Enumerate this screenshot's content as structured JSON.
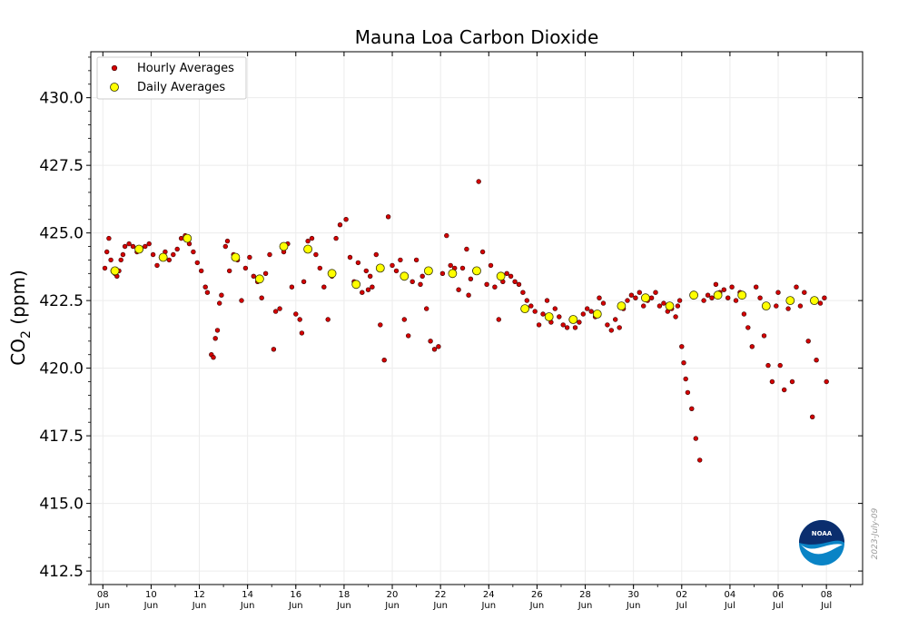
{
  "chart_data": {
    "type": "scatter",
    "title": "Mauna Loa Carbon Dioxide",
    "ylabel_main": "CO",
    "ylabel_sub": "2",
    "ylabel_units": " (ppm)",
    "ylim": [
      412.0,
      431.7
    ],
    "xlim": [
      "2023-06-07 12:00",
      "2023-07-09 12:00"
    ],
    "yticks": [
      "412.5",
      "415.0",
      "417.5",
      "420.0",
      "422.5",
      "425.0",
      "427.5",
      "430.0"
    ],
    "xticks": [
      {
        "day": "08",
        "month": "Jun"
      },
      {
        "day": "10",
        "month": "Jun"
      },
      {
        "day": "12",
        "month": "Jun"
      },
      {
        "day": "14",
        "month": "Jun"
      },
      {
        "day": "16",
        "month": "Jun"
      },
      {
        "day": "18",
        "month": "Jun"
      },
      {
        "day": "20",
        "month": "Jun"
      },
      {
        "day": "22",
        "month": "Jun"
      },
      {
        "day": "24",
        "month": "Jun"
      },
      {
        "day": "26",
        "month": "Jun"
      },
      {
        "day": "28",
        "month": "Jun"
      },
      {
        "day": "30",
        "month": "Jun"
      },
      {
        "day": "02",
        "month": "Jul"
      },
      {
        "day": "04",
        "month": "Jul"
      },
      {
        "day": "06",
        "month": "Jul"
      },
      {
        "day": "08",
        "month": "Jul"
      }
    ],
    "grid": true,
    "legend_position": "top-left",
    "colors": {
      "hourly": "#d40000",
      "daily": "#ffff00",
      "noaa_blue": "#0a84c6",
      "noaa_navy": "#0b2e6e"
    },
    "series": [
      {
        "name": "Daily Averages",
        "x": [
          "2023-06-08",
          "2023-06-09",
          "2023-06-10",
          "2023-06-11",
          "2023-06-12",
          "2023-06-13",
          "2023-06-14",
          "2023-06-15",
          "2023-06-16",
          "2023-06-17",
          "2023-06-18",
          "2023-06-19",
          "2023-06-20",
          "2023-06-21",
          "2023-06-22",
          "2023-06-23",
          "2023-06-24",
          "2023-06-25",
          "2023-06-26",
          "2023-06-27",
          "2023-06-28",
          "2023-06-29",
          "2023-06-30",
          "2023-07-01",
          "2023-07-02",
          "2023-07-03",
          "2023-07-04",
          "2023-07-05",
          "2023-07-06",
          "2023-07-07"
        ],
        "y": [
          423.6,
          424.4,
          424.1,
          424.8,
          null,
          424.1,
          423.3,
          424.5,
          424.4,
          423.5,
          423.1,
          423.7,
          423.4,
          423.6,
          423.5,
          423.6,
          423.4,
          422.2,
          421.9,
          421.8,
          422.0,
          422.3,
          422.6,
          422.3,
          422.7,
          422.7,
          422.7,
          422.3,
          422.5,
          422.5
        ]
      },
      {
        "name": "Hourly Averages",
        "x": [
          "2023-06-08 02",
          "2023-06-08 04",
          "2023-06-08 06",
          "2023-06-08 08",
          "2023-06-08 10",
          "2023-06-08 12",
          "2023-06-08 14",
          "2023-06-08 16",
          "2023-06-08 18",
          "2023-06-08 20",
          "2023-06-08 22",
          "2023-06-09 02",
          "2023-06-09 06",
          "2023-06-09 10",
          "2023-06-09 14",
          "2023-06-09 18",
          "2023-06-09 22",
          "2023-06-10 02",
          "2023-06-10 06",
          "2023-06-10 10",
          "2023-06-10 14",
          "2023-06-10 18",
          "2023-06-10 22",
          "2023-06-11 02",
          "2023-06-11 06",
          "2023-06-11 10",
          "2023-06-11 14",
          "2023-06-11 18",
          "2023-06-11 22",
          "2023-06-12 02",
          "2023-06-12 06",
          "2023-06-12 08",
          "2023-06-12 12",
          "2023-06-12 14",
          "2023-06-12 16",
          "2023-06-12 18",
          "2023-06-12 20",
          "2023-06-12 22",
          "2023-06-13 02",
          "2023-06-13 04",
          "2023-06-13 06",
          "2023-06-13 10",
          "2023-06-13 14",
          "2023-06-13 18",
          "2023-06-13 22",
          "2023-06-14 02",
          "2023-06-14 06",
          "2023-06-14 10",
          "2023-06-14 14",
          "2023-06-14 18",
          "2023-06-14 22",
          "2023-06-15 02",
          "2023-06-15 04",
          "2023-06-15 08",
          "2023-06-15 12",
          "2023-06-15 16",
          "2023-06-15 20",
          "2023-06-16 00",
          "2023-06-16 04",
          "2023-06-16 06",
          "2023-06-16 08",
          "2023-06-16 12",
          "2023-06-16 16",
          "2023-06-16 20",
          "2023-06-17 00",
          "2023-06-17 04",
          "2023-06-17 08",
          "2023-06-17 12",
          "2023-06-17 16",
          "2023-06-17 20",
          "2023-06-18 02",
          "2023-06-18 06",
          "2023-06-18 10",
          "2023-06-18 14",
          "2023-06-18 18",
          "2023-06-18 22",
          "2023-06-19 00",
          "2023-06-19 02",
          "2023-06-19 04",
          "2023-06-19 08",
          "2023-06-19 12",
          "2023-06-19 16",
          "2023-06-19 20",
          "2023-06-20 00",
          "2023-06-20 04",
          "2023-06-20 08",
          "2023-06-20 12",
          "2023-06-20 16",
          "2023-06-20 20",
          "2023-06-21 00",
          "2023-06-21 04",
          "2023-06-21 06",
          "2023-06-21 10",
          "2023-06-21 14",
          "2023-06-21 18",
          "2023-06-21 22",
          "2023-06-22 02",
          "2023-06-22 06",
          "2023-06-22 10",
          "2023-06-22 14",
          "2023-06-22 18",
          "2023-06-22 22",
          "2023-06-23 02",
          "2023-06-23 04",
          "2023-06-23 06",
          "2023-06-23 10",
          "2023-06-23 14",
          "2023-06-23 18",
          "2023-06-23 22",
          "2023-06-24 02",
          "2023-06-24 06",
          "2023-06-24 10",
          "2023-06-24 14",
          "2023-06-24 18",
          "2023-06-24 22",
          "2023-06-25 02",
          "2023-06-25 06",
          "2023-06-25 10",
          "2023-06-25 14",
          "2023-06-25 18",
          "2023-06-25 22",
          "2023-06-26 02",
          "2023-06-26 06",
          "2023-06-26 10",
          "2023-06-26 14",
          "2023-06-26 18",
          "2023-06-26 22",
          "2023-06-27 02",
          "2023-06-27 06",
          "2023-06-27 10",
          "2023-06-27 14",
          "2023-06-27 18",
          "2023-06-27 22",
          "2023-06-28 02",
          "2023-06-28 06",
          "2023-06-28 10",
          "2023-06-28 14",
          "2023-06-28 18",
          "2023-06-28 22",
          "2023-06-29 02",
          "2023-06-29 06",
          "2023-06-29 10",
          "2023-06-29 14",
          "2023-06-29 18",
          "2023-06-29 22",
          "2023-06-30 02",
          "2023-06-30 06",
          "2023-06-30 10",
          "2023-06-30 14",
          "2023-06-30 18",
          "2023-06-30 22",
          "2023-07-01 02",
          "2023-07-01 06",
          "2023-07-01 10",
          "2023-07-01 14",
          "2023-07-01 18",
          "2023-07-01 20",
          "2023-07-01 22",
          "2023-07-02 00",
          "2023-07-02 02",
          "2023-07-02 04",
          "2023-07-02 06",
          "2023-07-02 10",
          "2023-07-02 14",
          "2023-07-02 18",
          "2023-07-02 22",
          "2023-07-03 02",
          "2023-07-03 06",
          "2023-07-03 10",
          "2023-07-03 14",
          "2023-07-03 18",
          "2023-07-03 22",
          "2023-07-04 02",
          "2023-07-04 06",
          "2023-07-04 10",
          "2023-07-04 14",
          "2023-07-04 18",
          "2023-07-04 22",
          "2023-07-05 02",
          "2023-07-05 06",
          "2023-07-05 10",
          "2023-07-05 14",
          "2023-07-05 18",
          "2023-07-05 22",
          "2023-07-06 00",
          "2023-07-06 02",
          "2023-07-06 06",
          "2023-07-06 10",
          "2023-07-06 14",
          "2023-07-06 18",
          "2023-07-06 22",
          "2023-07-07 02",
          "2023-07-07 06",
          "2023-07-07 10",
          "2023-07-07 14",
          "2023-07-07 18",
          "2023-07-07 22",
          "2023-07-08 00"
        ],
        "y": [
          423.7,
          424.3,
          424.8,
          424.0,
          423.6,
          423.5,
          423.4,
          423.6,
          424.0,
          424.2,
          424.5,
          424.6,
          424.5,
          424.3,
          424.4,
          424.5,
          424.6,
          424.2,
          423.8,
          424.1,
          424.3,
          424.0,
          424.2,
          424.4,
          424.8,
          424.9,
          424.6,
          424.3,
          423.9,
          423.6,
          423.0,
          422.8,
          420.5,
          420.4,
          421.1,
          421.4,
          422.4,
          422.7,
          424.5,
          424.7,
          423.6,
          424.2,
          424.0,
          422.5,
          423.7,
          424.1,
          423.4,
          423.2,
          422.6,
          423.5,
          424.2,
          420.7,
          422.1,
          422.2,
          424.3,
          424.6,
          423.0,
          422.0,
          421.8,
          421.3,
          423.2,
          424.7,
          424.8,
          424.2,
          423.7,
          423.0,
          421.8,
          423.4,
          424.8,
          425.3,
          425.5,
          424.1,
          423.2,
          423.9,
          422.8,
          423.6,
          422.9,
          423.4,
          423.0,
          424.2,
          421.6,
          420.3,
          425.6,
          423.8,
          423.6,
          424.0,
          421.8,
          421.2,
          423.2,
          424.0,
          423.1,
          423.4,
          422.2,
          421.0,
          420.7,
          420.8,
          423.5,
          424.9,
          423.8,
          423.7,
          422.9,
          423.7,
          424.4,
          422.7,
          423.3,
          423.6,
          426.9,
          424.3,
          423.1,
          423.8,
          423.0,
          421.8,
          423.2,
          423.5,
          423.4,
          423.2,
          423.1,
          422.8,
          422.5,
          422.3,
          422.1,
          421.6,
          422.0,
          422.5,
          421.7,
          422.2,
          421.9,
          421.6,
          421.5,
          421.8,
          421.5,
          421.7,
          422.0,
          422.2,
          422.1,
          421.9,
          422.6,
          422.4,
          421.6,
          421.4,
          421.8,
          421.5,
          422.2,
          422.5,
          422.7,
          422.6,
          422.8,
          422.3,
          422.5,
          422.6,
          422.8,
          422.3,
          422.4,
          422.1,
          422.2,
          421.9,
          422.3,
          422.5,
          420.8,
          420.2,
          419.6,
          419.1,
          418.5,
          417.4,
          416.6,
          422.5,
          422.7,
          422.6,
          423.1,
          422.8,
          422.9,
          422.6,
          423.0,
          422.5,
          422.8,
          422.0,
          421.5,
          420.8,
          423.0,
          422.6,
          421.2,
          420.1,
          419.5,
          422.3,
          422.8,
          420.1,
          419.2,
          422.2,
          419.5,
          423.0,
          422.3,
          422.8,
          421.0,
          418.2,
          420.3,
          422.4,
          422.6,
          419.5
        ]
      }
    ],
    "watermark_date": "2023-July-09",
    "logo_text": "NOAA"
  }
}
